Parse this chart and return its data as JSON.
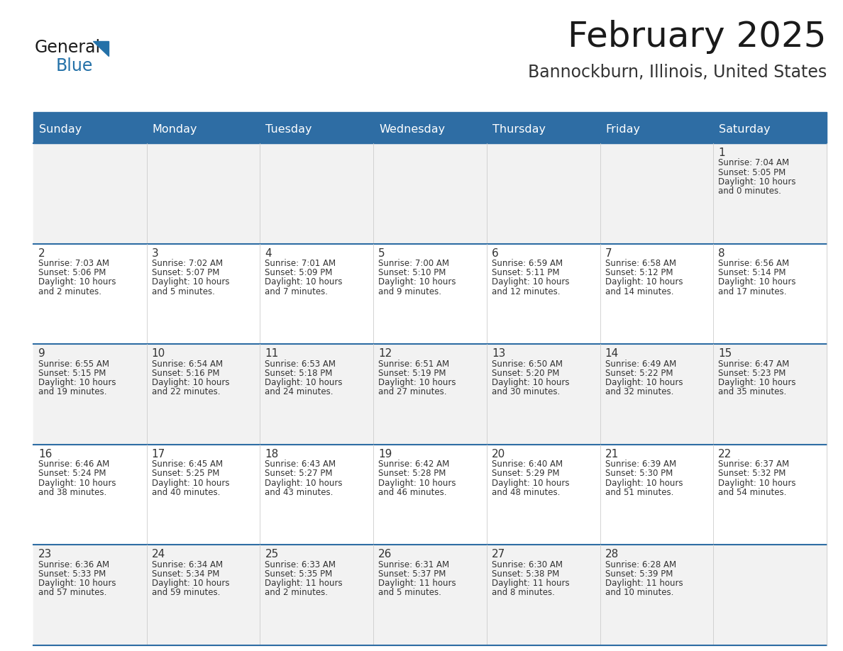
{
  "title": "February 2025",
  "subtitle": "Bannockburn, Illinois, United States",
  "days_of_week": [
    "Sunday",
    "Monday",
    "Tuesday",
    "Wednesday",
    "Thursday",
    "Friday",
    "Saturday"
  ],
  "header_bg": "#2E6DA4",
  "header_text": "#FFFFFF",
  "row_bg_odd": "#F2F2F2",
  "row_bg_even": "#FFFFFF",
  "line_color": "#2E6DA4",
  "title_color": "#1a1a1a",
  "subtitle_color": "#333333",
  "cell_text_color": "#333333",
  "day_num_color": "#333333",
  "logo_general_color": "#1a1a1a",
  "logo_blue_color": "#2471A8",
  "calendar": [
    [
      null,
      null,
      null,
      null,
      null,
      null,
      1
    ],
    [
      2,
      3,
      4,
      5,
      6,
      7,
      8
    ],
    [
      9,
      10,
      11,
      12,
      13,
      14,
      15
    ],
    [
      16,
      17,
      18,
      19,
      20,
      21,
      22
    ],
    [
      23,
      24,
      25,
      26,
      27,
      28,
      null
    ]
  ],
  "sunrise": {
    "1": "7:04 AM",
    "2": "7:03 AM",
    "3": "7:02 AM",
    "4": "7:01 AM",
    "5": "7:00 AM",
    "6": "6:59 AM",
    "7": "6:58 AM",
    "8": "6:56 AM",
    "9": "6:55 AM",
    "10": "6:54 AM",
    "11": "6:53 AM",
    "12": "6:51 AM",
    "13": "6:50 AM",
    "14": "6:49 AM",
    "15": "6:47 AM",
    "16": "6:46 AM",
    "17": "6:45 AM",
    "18": "6:43 AM",
    "19": "6:42 AM",
    "20": "6:40 AM",
    "21": "6:39 AM",
    "22": "6:37 AM",
    "23": "6:36 AM",
    "24": "6:34 AM",
    "25": "6:33 AM",
    "26": "6:31 AM",
    "27": "6:30 AM",
    "28": "6:28 AM"
  },
  "sunset": {
    "1": "5:05 PM",
    "2": "5:06 PM",
    "3": "5:07 PM",
    "4": "5:09 PM",
    "5": "5:10 PM",
    "6": "5:11 PM",
    "7": "5:12 PM",
    "8": "5:14 PM",
    "9": "5:15 PM",
    "10": "5:16 PM",
    "11": "5:18 PM",
    "12": "5:19 PM",
    "13": "5:20 PM",
    "14": "5:22 PM",
    "15": "5:23 PM",
    "16": "5:24 PM",
    "17": "5:25 PM",
    "18": "5:27 PM",
    "19": "5:28 PM",
    "20": "5:29 PM",
    "21": "5:30 PM",
    "22": "5:32 PM",
    "23": "5:33 PM",
    "24": "5:34 PM",
    "25": "5:35 PM",
    "26": "5:37 PM",
    "27": "5:38 PM",
    "28": "5:39 PM"
  },
  "daylight_line1": {
    "1": "Daylight: 10 hours",
    "2": "Daylight: 10 hours",
    "3": "Daylight: 10 hours",
    "4": "Daylight: 10 hours",
    "5": "Daylight: 10 hours",
    "6": "Daylight: 10 hours",
    "7": "Daylight: 10 hours",
    "8": "Daylight: 10 hours",
    "9": "Daylight: 10 hours",
    "10": "Daylight: 10 hours",
    "11": "Daylight: 10 hours",
    "12": "Daylight: 10 hours",
    "13": "Daylight: 10 hours",
    "14": "Daylight: 10 hours",
    "15": "Daylight: 10 hours",
    "16": "Daylight: 10 hours",
    "17": "Daylight: 10 hours",
    "18": "Daylight: 10 hours",
    "19": "Daylight: 10 hours",
    "20": "Daylight: 10 hours",
    "21": "Daylight: 10 hours",
    "22": "Daylight: 10 hours",
    "23": "Daylight: 10 hours",
    "24": "Daylight: 10 hours",
    "25": "Daylight: 11 hours",
    "26": "Daylight: 11 hours",
    "27": "Daylight: 11 hours",
    "28": "Daylight: 11 hours"
  },
  "daylight_line2": {
    "1": "and 0 minutes.",
    "2": "and 2 minutes.",
    "3": "and 5 minutes.",
    "4": "and 7 minutes.",
    "5": "and 9 minutes.",
    "6": "and 12 minutes.",
    "7": "and 14 minutes.",
    "8": "and 17 minutes.",
    "9": "and 19 minutes.",
    "10": "and 22 minutes.",
    "11": "and 24 minutes.",
    "12": "and 27 minutes.",
    "13": "and 30 minutes.",
    "14": "and 32 minutes.",
    "15": "and 35 minutes.",
    "16": "and 38 minutes.",
    "17": "and 40 minutes.",
    "18": "and 43 minutes.",
    "19": "and 46 minutes.",
    "20": "and 48 minutes.",
    "21": "and 51 minutes.",
    "22": "and 54 minutes.",
    "23": "and 57 minutes.",
    "24": "and 59 minutes.",
    "25": "and 2 minutes.",
    "26": "and 5 minutes.",
    "27": "and 8 minutes.",
    "28": "and 10 minutes."
  }
}
